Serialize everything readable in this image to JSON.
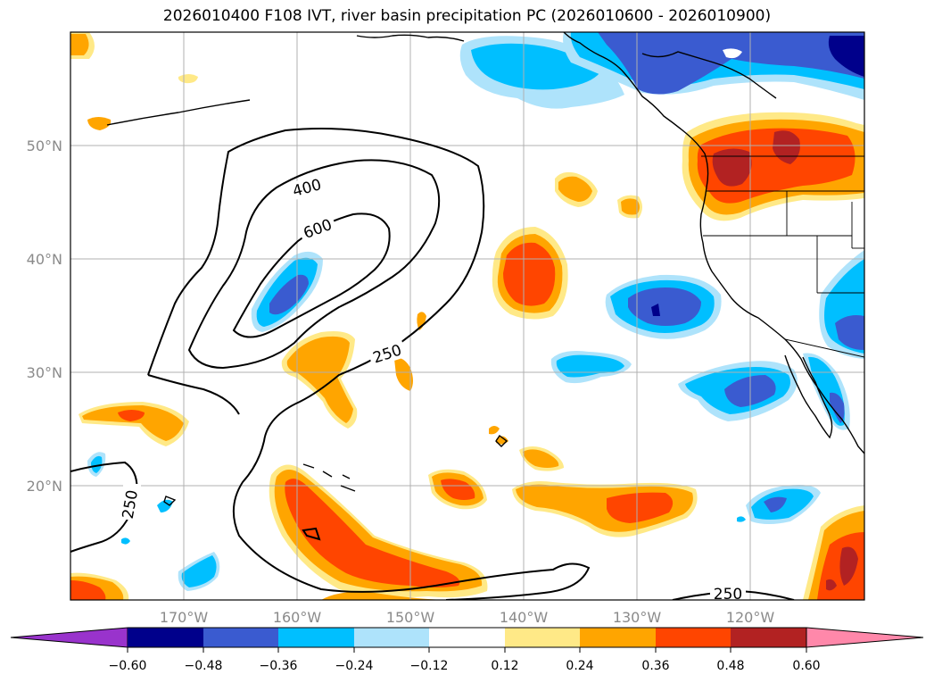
{
  "title": "2026010400 F108 IVT, river basin precipitation PC (2026010600 - 2026010900)",
  "lat_labels": [
    "50°N",
    "40°N",
    "30°N",
    "20°N"
  ],
  "lon_labels": [
    "170°W",
    "160°W",
    "150°W",
    "140°W",
    "130°W",
    "120°W"
  ],
  "contour_labels": [
    "400",
    "600",
    "250",
    "250",
    "250"
  ],
  "colorbar": {
    "tick_labels": [
      "−0.60",
      "−0.48",
      "−0.36",
      "−0.24",
      "−0.12",
      "0.12",
      "0.24",
      "0.36",
      "0.48",
      "0.60"
    ],
    "colors": [
      "#9933cc",
      "#00008b",
      "#3a5bd0",
      "#00bfff",
      "#aee3fb",
      "#ffffff",
      "#ffe987",
      "#ffa500",
      "#ff4500",
      "#b22222",
      "#ff88aa"
    ]
  }
}
